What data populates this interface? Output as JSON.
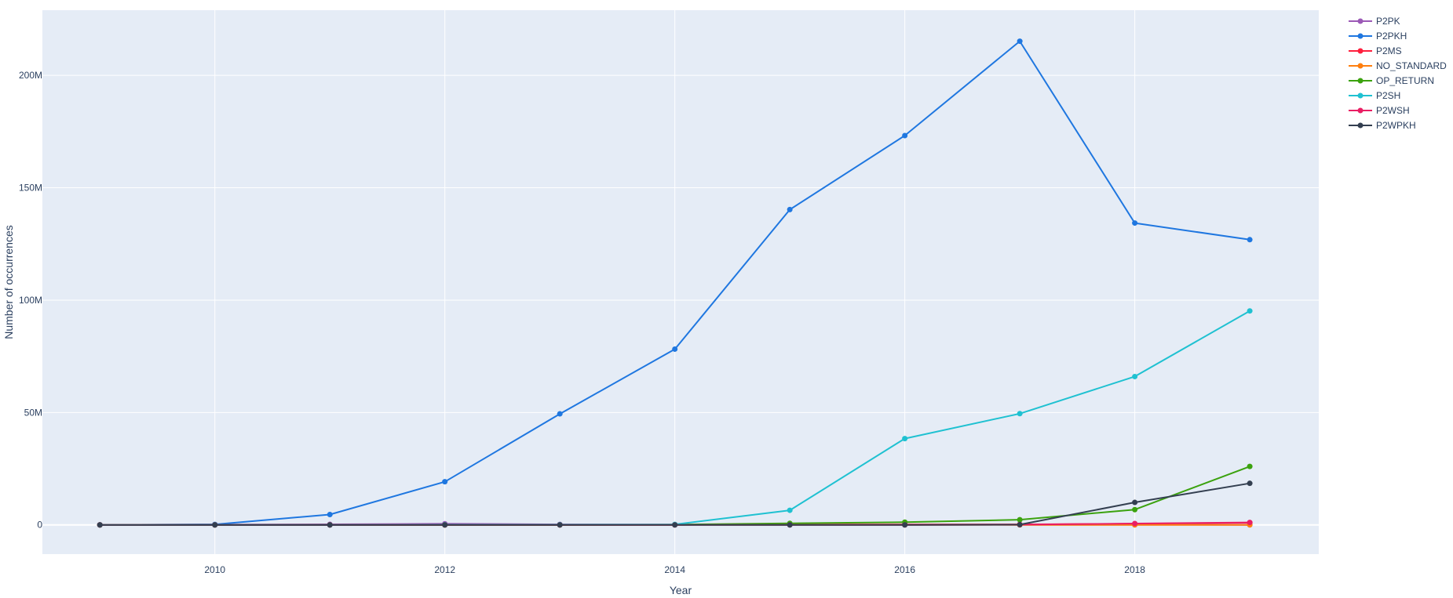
{
  "chart_data": {
    "type": "line",
    "title": "",
    "xlabel": "Year",
    "ylabel": "Number of occurrences",
    "x": [
      2009,
      2010,
      2011,
      2012,
      2013,
      2014,
      2015,
      2016,
      2017,
      2018,
      2019
    ],
    "xlim": [
      2008.5,
      2019.6
    ],
    "ylim": [
      -13000000,
      229000000
    ],
    "x_ticks": [
      2010,
      2012,
      2014,
      2016,
      2018
    ],
    "x_tick_labels": [
      "2010",
      "2012",
      "2014",
      "2016",
      "2018"
    ],
    "y_ticks": [
      0,
      50000000,
      100000000,
      150000000,
      200000000
    ],
    "y_tick_labels": [
      "0",
      "50M",
      "100M",
      "150M",
      "200M"
    ],
    "grid": true,
    "legend_position": "right",
    "series": [
      {
        "name": "P2PK",
        "color": "#9b59b6",
        "values": [
          30000,
          120000,
          250000,
          500000,
          200000,
          100000,
          80000,
          60000,
          40000,
          30000,
          20000
        ]
      },
      {
        "name": "P2PKH",
        "color": "#1f77e0",
        "values": [
          0,
          200000,
          4600000,
          19200000,
          49400000,
          78200000,
          140300000,
          173200000,
          215200000,
          134300000,
          126900000
        ]
      },
      {
        "name": "P2MS",
        "color": "#ff1f3d",
        "values": [
          0,
          0,
          0,
          0,
          10000,
          50000,
          150000,
          200000,
          200000,
          500000,
          900000
        ]
      },
      {
        "name": "NO_STANDARD",
        "color": "#ff7f0e",
        "values": [
          0,
          0,
          5000,
          10000,
          10000,
          20000,
          50000,
          30000,
          20000,
          10000,
          10000
        ]
      },
      {
        "name": "OP_RETURN",
        "color": "#3ba20e",
        "values": [
          0,
          0,
          0,
          0,
          0,
          100000,
          700000,
          1200000,
          2300000,
          6800000,
          26000000
        ]
      },
      {
        "name": "P2SH",
        "color": "#1fc1d1",
        "values": [
          0,
          0,
          0,
          100000,
          100000,
          200000,
          6500000,
          38400000,
          49500000,
          66000000,
          95200000
        ]
      },
      {
        "name": "P2WSH",
        "color": "#e91e63",
        "values": [
          0,
          0,
          0,
          0,
          0,
          0,
          0,
          0,
          100000,
          600000,
          1100000
        ]
      },
      {
        "name": "P2WPKH",
        "color": "#333f50",
        "values": [
          0,
          0,
          0,
          0,
          0,
          0,
          0,
          0,
          100000,
          10000000,
          18500000
        ]
      }
    ]
  }
}
